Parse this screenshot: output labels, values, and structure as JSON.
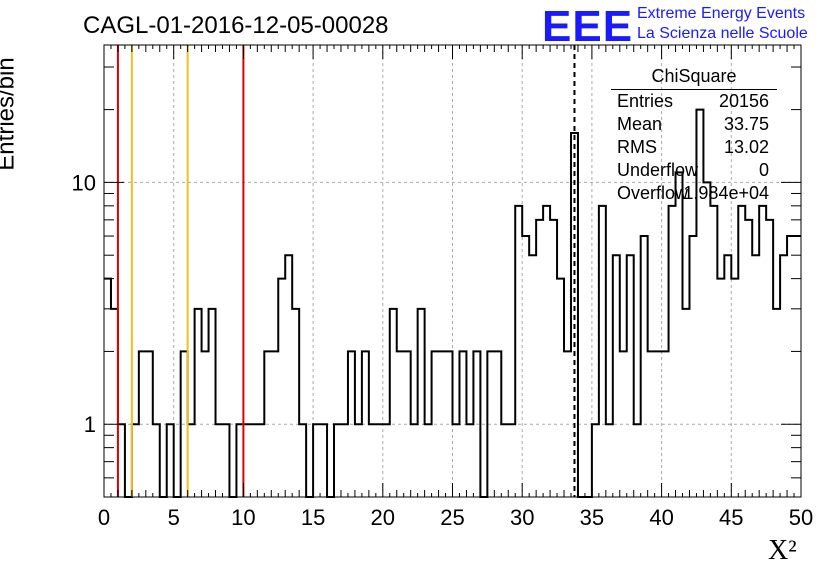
{
  "header": {
    "title": "CAGL-01-2016-12-05-00028",
    "logo": "EEE",
    "logo_line1": "Extreme Energy Events",
    "logo_line2": "La Scienza nelle Scuole"
  },
  "stats_box": {
    "name": "ChiSquare",
    "rows": [
      {
        "key": "Entries",
        "value": "20156"
      },
      {
        "key": "Mean",
        "value": "33.75"
      },
      {
        "key": "RMS",
        "value": "13.02"
      },
      {
        "key": "Underflow",
        "value": "0"
      },
      {
        "key": "Overflow",
        "value": "1.984e+04"
      }
    ]
  },
  "colors": {
    "red_line": "#e00000",
    "yellow_line": "#f0c020",
    "grid": "#aaaaaa"
  },
  "chart_data": {
    "type": "bar",
    "style": "step-histogram",
    "xlabel": "X²",
    "ylabel": "Entries/bin",
    "xlim": [
      0,
      50
    ],
    "ylim": [
      0.5,
      37
    ],
    "y_scale": "log",
    "grid": true,
    "x_ticks": [
      "0",
      "5",
      "10",
      "15",
      "20",
      "25",
      "30",
      "35",
      "40",
      "45",
      "50"
    ],
    "y_ticks": [
      "1",
      "10"
    ],
    "bin_width": 0.5,
    "counts": [
      4,
      3,
      1,
      0,
      1,
      2,
      2,
      1,
      0,
      1,
      0,
      2,
      1,
      3,
      2,
      3,
      1,
      1,
      0,
      1,
      1,
      1,
      1,
      2,
      2,
      4,
      5,
      3,
      1,
      0,
      1,
      1,
      0,
      1,
      1,
      2,
      1,
      2,
      1,
      1,
      1,
      3,
      2,
      2,
      1,
      3,
      1,
      2,
      2,
      2,
      1,
      2,
      1,
      2,
      0,
      2,
      2,
      1,
      1,
      8,
      6,
      5,
      7,
      8,
      7,
      4,
      2,
      16,
      0,
      0,
      1,
      8,
      1,
      5,
      2,
      5,
      1,
      6,
      2,
      2,
      2,
      8,
      11,
      3,
      6,
      20,
      10,
      8,
      4,
      5,
      4,
      8,
      7,
      5,
      8,
      7,
      3,
      5,
      6,
      6
    ],
    "vertical_lines": [
      {
        "x": 1.0,
        "color": "red"
      },
      {
        "x": 2.0,
        "color": "yellow"
      },
      {
        "x": 6.0,
        "color": "yellow"
      },
      {
        "x": 10.0,
        "color": "red"
      },
      {
        "x": 33.75,
        "color": "black",
        "style": "dashed"
      }
    ]
  }
}
